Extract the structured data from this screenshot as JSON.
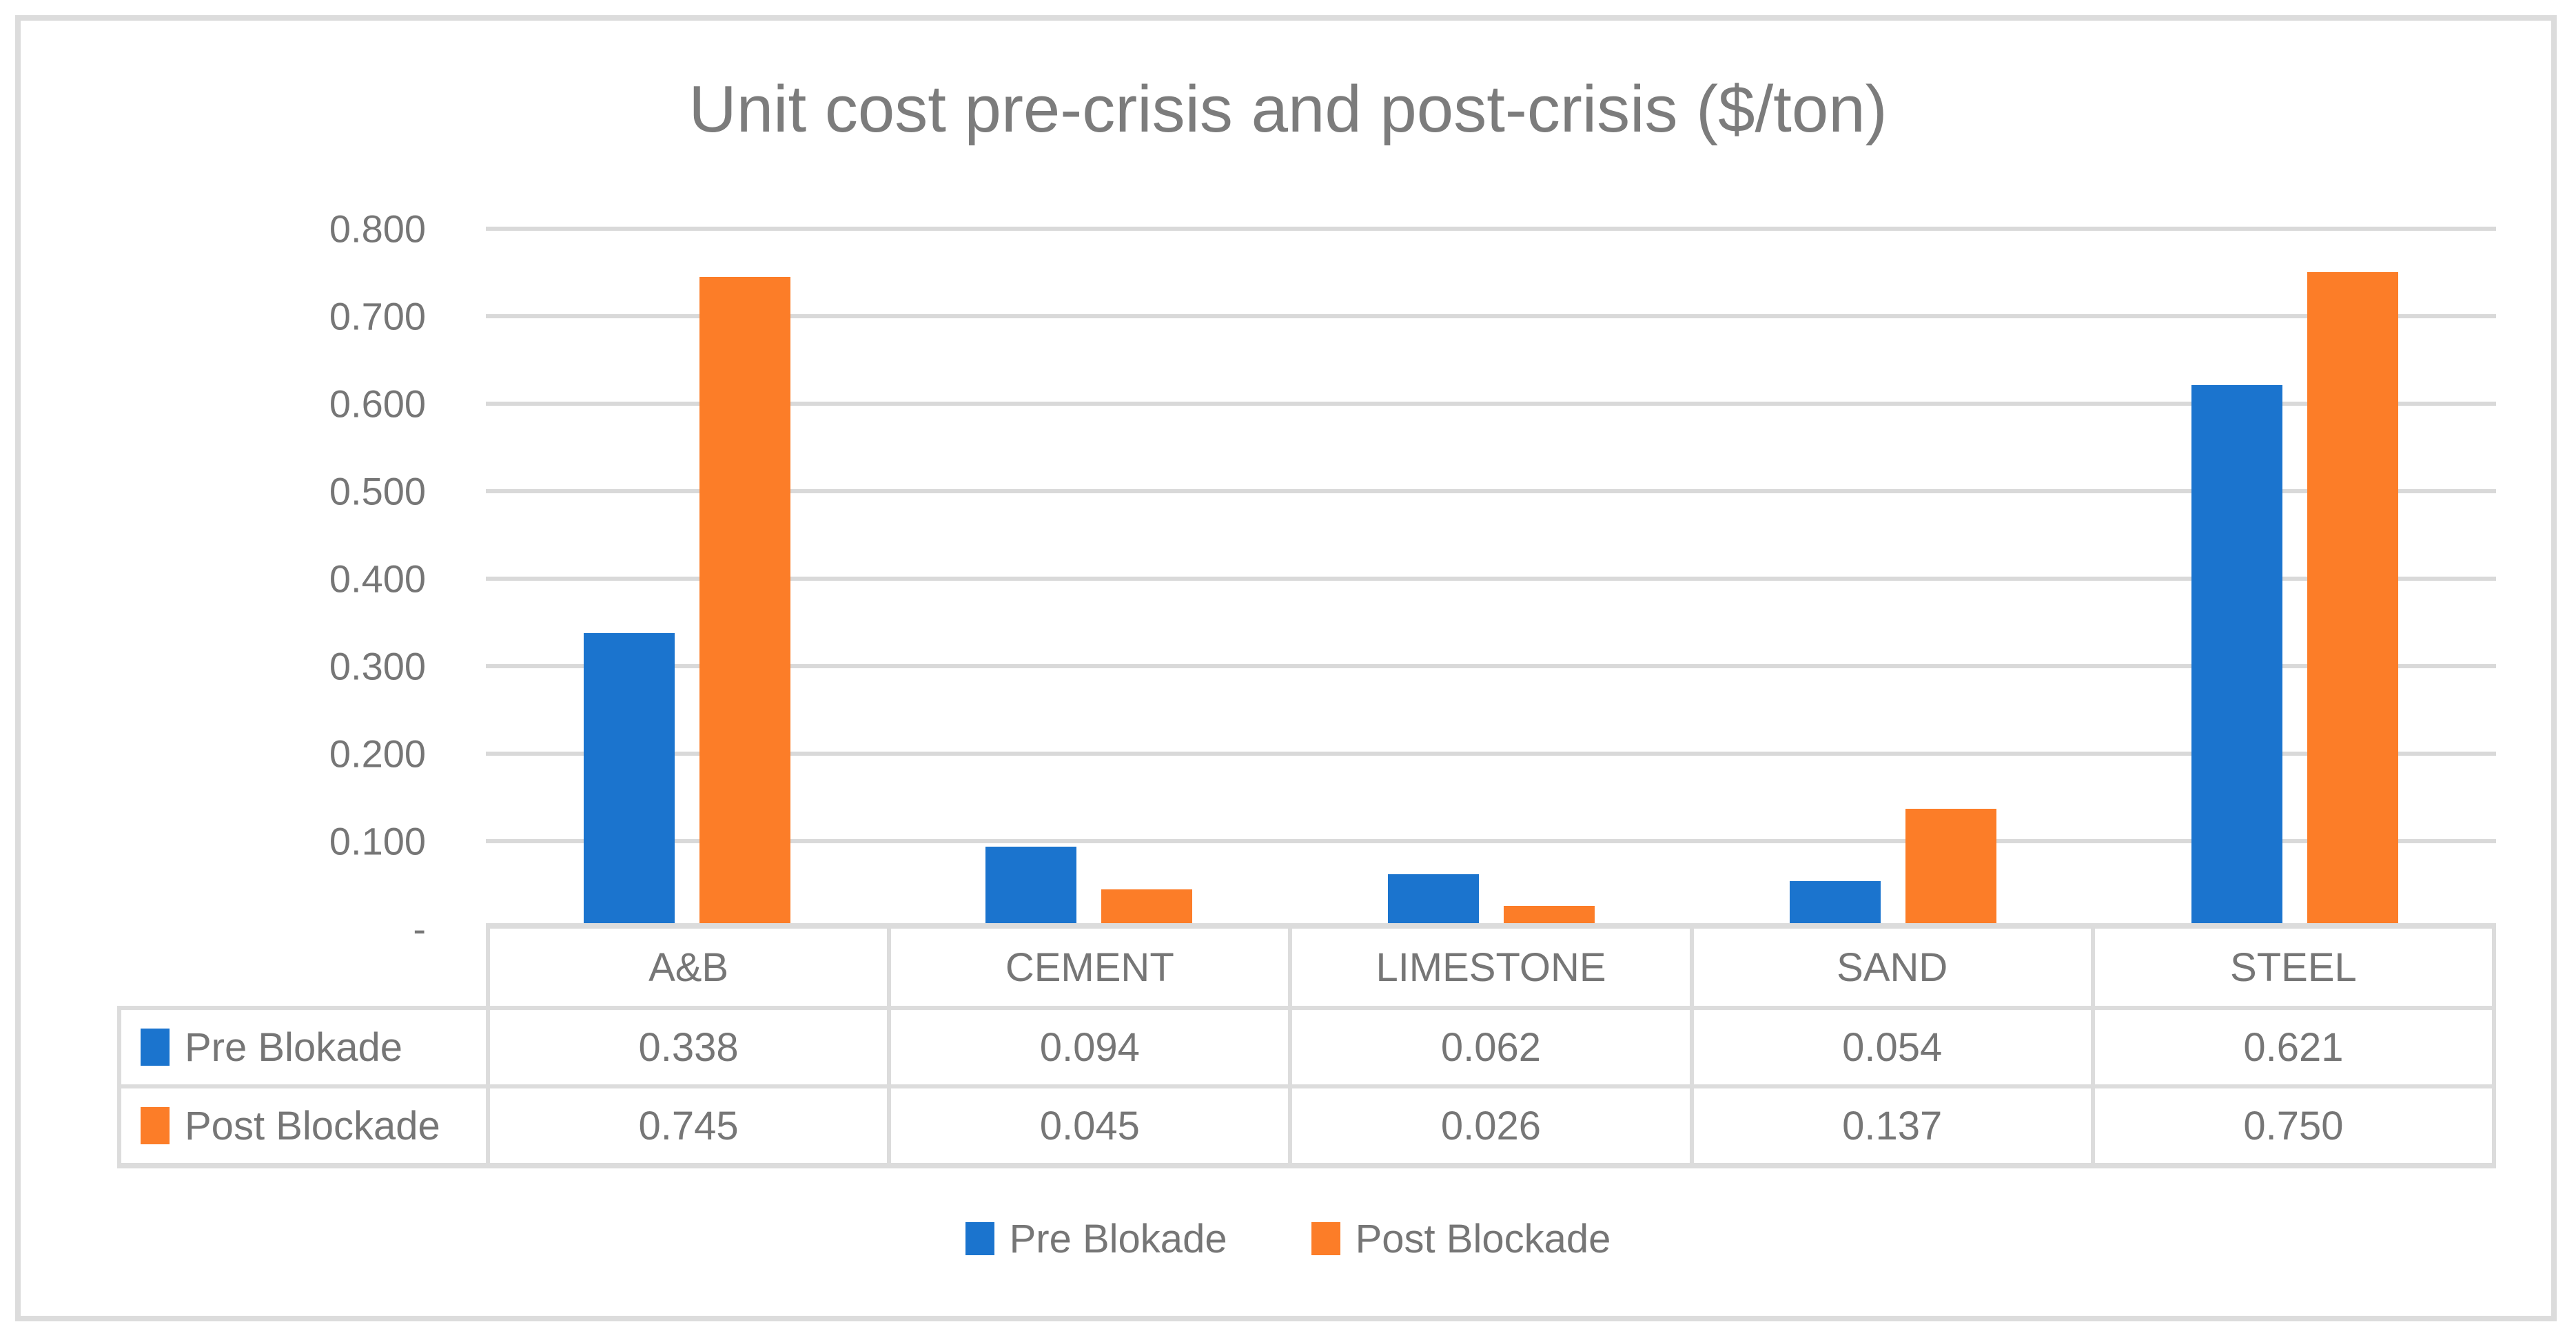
{
  "title": "Unit cost pre-crisis and post-crisis ($/ton)",
  "colors": {
    "pre_series": "#1B74CE",
    "post_series": "#FC7D28",
    "gridline": "#D9D9D9",
    "frame_border": "#DCDCDC",
    "text_gray": "#767676",
    "title_gray": "#7C7C7C"
  },
  "y_axis": {
    "ticks": [
      "0.800",
      "0.700",
      "0.600",
      "0.500",
      "0.400",
      "0.300",
      "0.200",
      "0.100",
      "-"
    ]
  },
  "legend": {
    "items": [
      {
        "label": "Pre Blokade",
        "series": "pre"
      },
      {
        "label": "Post Blockade",
        "series": "post"
      }
    ]
  },
  "table": {
    "header": [
      "A&B",
      "CEMENT",
      "LIMESTONE",
      "SAND",
      "STEEL"
    ],
    "rows": [
      {
        "label": "Pre Blokade",
        "series": "pre",
        "values": [
          "0.338",
          "0.094",
          "0.062",
          "0.054",
          "0.621"
        ]
      },
      {
        "label": "Post Blockade",
        "series": "post",
        "values": [
          "0.745",
          "0.045",
          "0.026",
          "0.137",
          "0.750"
        ]
      }
    ]
  },
  "chart_data": {
    "type": "bar",
    "title": "Unit cost pre-crisis and post-crisis ($/ton)",
    "categories": [
      "A&B",
      "CEMENT",
      "LIMESTONE",
      "SAND",
      "STEEL"
    ],
    "series": [
      {
        "name": "Pre Blokade",
        "color": "#1B74CE",
        "values": [
          0.338,
          0.094,
          0.062,
          0.054,
          0.621
        ]
      },
      {
        "name": "Post Blockade",
        "color": "#FC7D28",
        "values": [
          0.745,
          0.045,
          0.026,
          0.137,
          0.75
        ]
      }
    ],
    "xlabel": "",
    "ylabel": "",
    "ylim": [
      0,
      0.8
    ],
    "ytick_step": 0.1,
    "grid": true,
    "legend_position": "bottom",
    "data_table_shown": true,
    "value_format": "0.000"
  }
}
